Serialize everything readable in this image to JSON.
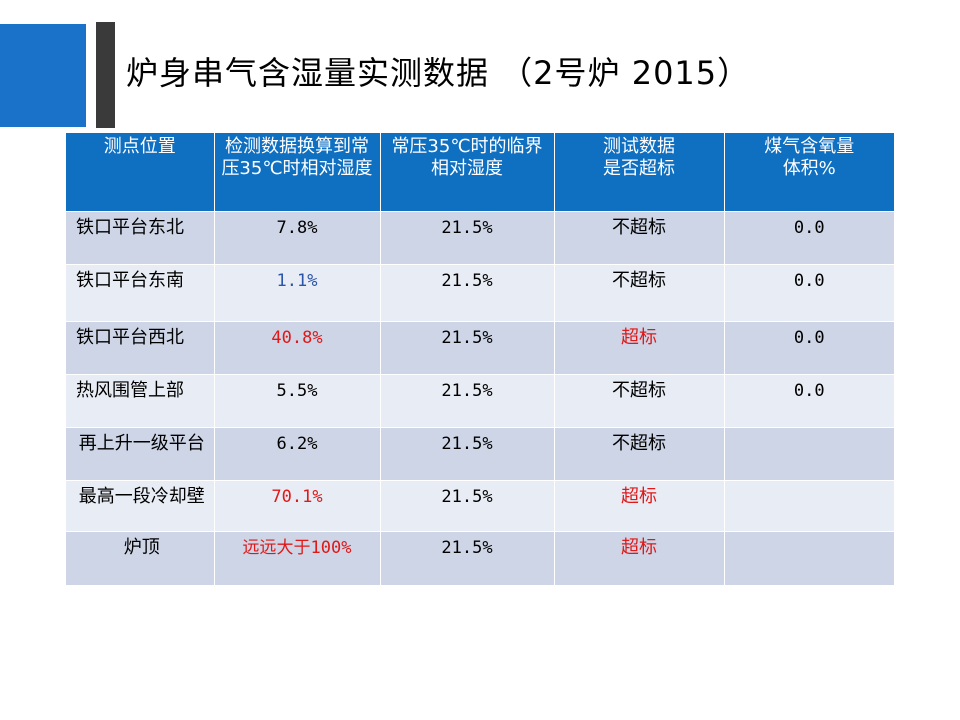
{
  "title": "炉身串气含湿量实测数据 （2号炉  2015）",
  "colors": {
    "accent_blue": "#1a73c8",
    "header_blue": "#0f6fc1",
    "row_dark": "#cdd5e6",
    "row_light": "#e8ecf4",
    "alert_red": "#e01818"
  },
  "table": {
    "headers": [
      "测点位置",
      "检测数据换算到常压35℃时相对湿度",
      "常压35℃时的临界相对湿度",
      "测试数据\n是否超标",
      "煤气含氧量\n体积%"
    ],
    "rows": [
      {
        "location": "铁口平台东北",
        "humidity": "7.8%",
        "critical": "21.5%",
        "status": "不超标",
        "oxygen": "0.0"
      },
      {
        "location": "铁口平台东南",
        "humidity": "1.1%",
        "critical": "21.5%",
        "status": "不超标",
        "oxygen": "0.0"
      },
      {
        "location": "铁口平台西北",
        "humidity": "40.8%",
        "critical": "21.5%",
        "status": "超标",
        "oxygen": "0.0"
      },
      {
        "location": "热风围管上部",
        "humidity": "5.5%",
        "critical": "21.5%",
        "status": "不超标",
        "oxygen": "0.0"
      },
      {
        "location": "再上升一级平台",
        "humidity": "6.2%",
        "critical": "21.5%",
        "status": "不超标",
        "oxygen": ""
      },
      {
        "location": "最高一段冷却壁",
        "humidity": "70.1%",
        "critical": "21.5%",
        "status": "超标",
        "oxygen": ""
      },
      {
        "location": "炉顶",
        "humidity": "远远大于100%",
        "critical": "21.5%",
        "status": "超标",
        "oxygen": ""
      }
    ]
  }
}
